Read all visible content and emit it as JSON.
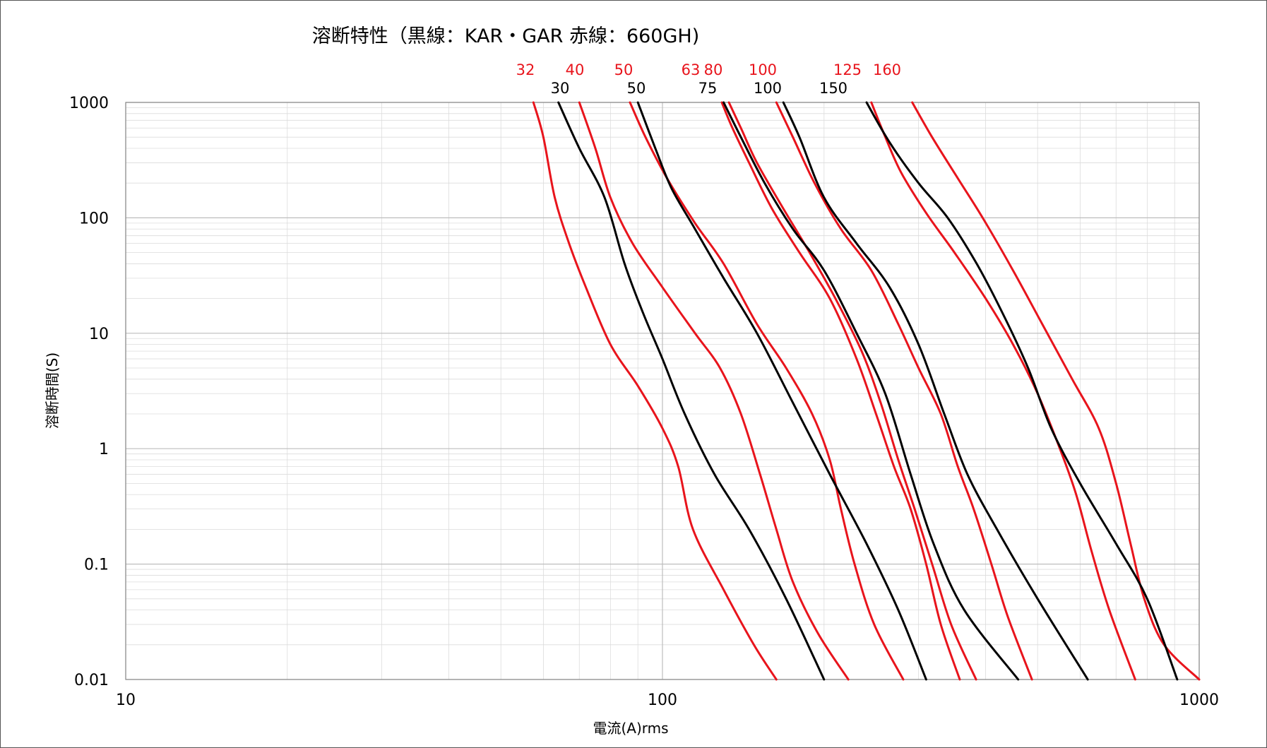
{
  "chart_data": {
    "type": "line",
    "title": "溶断特性（黒線：KAR・GAR 赤線：660GH)",
    "xlabel": "電流(A)rms",
    "ylabel": "溶断時間(S)",
    "x_scale": "log",
    "y_scale": "log",
    "xlim": [
      10,
      1000
    ],
    "ylim": [
      0.01,
      1000
    ],
    "x_ticks": [
      "10",
      "100",
      "1000"
    ],
    "y_ticks": [
      "1000",
      "100",
      "10",
      "1",
      "0.1",
      "0.01"
    ],
    "grid": true,
    "legend": "none",
    "colors": {
      "black_series": "#000000",
      "red_series": "#e8141c"
    },
    "rating_labels_red": [
      "32",
      "40",
      "50",
      "63",
      "80",
      "100",
      "125",
      "160"
    ],
    "rating_labels_black": [
      "30",
      "50",
      "75",
      "100",
      "150"
    ],
    "series": [
      {
        "name": "32",
        "color": "red",
        "points": [
          [
            57.5,
            1000
          ],
          [
            60,
            500
          ],
          [
            63,
            150
          ],
          [
            67,
            60
          ],
          [
            72,
            25
          ],
          [
            80,
            8
          ],
          [
            90,
            3.5
          ],
          [
            100,
            1.5
          ],
          [
            107,
            0.7
          ],
          [
            114,
            0.2
          ],
          [
            130,
            0.06
          ],
          [
            148,
            0.02
          ],
          [
            163,
            0.01
          ]
        ]
      },
      {
        "name": "40",
        "color": "red",
        "points": [
          [
            70,
            1000
          ],
          [
            75,
            400
          ],
          [
            80,
            150
          ],
          [
            88,
            60
          ],
          [
            100,
            25
          ],
          [
            115,
            10
          ],
          [
            128,
            5
          ],
          [
            140,
            2
          ],
          [
            152,
            0.6
          ],
          [
            163,
            0.2
          ],
          [
            175,
            0.07
          ],
          [
            195,
            0.025
          ],
          [
            222,
            0.01
          ]
        ]
      },
      {
        "name": "50",
        "color": "red",
        "points": [
          [
            87,
            1000
          ],
          [
            93,
            500
          ],
          [
            102,
            220
          ],
          [
            115,
            90
          ],
          [
            130,
            40
          ],
          [
            150,
            12
          ],
          [
            170,
            5
          ],
          [
            190,
            2
          ],
          [
            205,
            0.8
          ],
          [
            215,
            0.3
          ],
          [
            228,
            0.1
          ],
          [
            248,
            0.03
          ],
          [
            281,
            0.01
          ]
        ]
      },
      {
        "name": "63",
        "color": "red",
        "points": [
          [
            129,
            1000
          ],
          [
            135,
            600
          ],
          [
            145,
            300
          ],
          [
            160,
            120
          ],
          [
            180,
            50
          ],
          [
            205,
            20
          ],
          [
            230,
            6
          ],
          [
            250,
            2
          ],
          [
            270,
            0.7
          ],
          [
            290,
            0.3
          ],
          [
            310,
            0.1
          ],
          [
            330,
            0.03
          ],
          [
            358,
            0.01
          ]
        ]
      },
      {
        "name": "80",
        "color": "red",
        "points": [
          [
            133,
            1000
          ],
          [
            140,
            600
          ],
          [
            150,
            300
          ],
          [
            168,
            120
          ],
          [
            188,
            50
          ],
          [
            210,
            20
          ],
          [
            235,
            7
          ],
          [
            255,
            2.5
          ],
          [
            275,
            0.8
          ],
          [
            295,
            0.3
          ],
          [
            318,
            0.1
          ],
          [
            345,
            0.03
          ],
          [
            384,
            0.01
          ]
        ]
      },
      {
        "name": "100",
        "color": "red",
        "points": [
          [
            163,
            1000
          ],
          [
            175,
            500
          ],
          [
            192,
            200
          ],
          [
            215,
            80
          ],
          [
            245,
            35
          ],
          [
            275,
            12
          ],
          [
            300,
            5
          ],
          [
            330,
            2
          ],
          [
            355,
            0.7
          ],
          [
            380,
            0.3
          ],
          [
            410,
            0.1
          ],
          [
            440,
            0.035
          ],
          [
            488,
            0.01
          ]
        ]
      },
      {
        "name": "125",
        "color": "red",
        "points": [
          [
            245,
            1000
          ],
          [
            258,
            550
          ],
          [
            278,
            250
          ],
          [
            310,
            110
          ],
          [
            350,
            50
          ],
          [
            400,
            20
          ],
          [
            450,
            8
          ],
          [
            500,
            3
          ],
          [
            550,
            1
          ],
          [
            590,
            0.4
          ],
          [
            630,
            0.13
          ],
          [
            680,
            0.04
          ],
          [
            760,
            0.01
          ]
        ]
      },
      {
        "name": "160",
        "color": "red",
        "points": [
          [
            292,
            1000
          ],
          [
            318,
            500
          ],
          [
            355,
            220
          ],
          [
            395,
            100
          ],
          [
            450,
            35
          ],
          [
            510,
            12
          ],
          [
            580,
            4
          ],
          [
            650,
            1.5
          ],
          [
            700,
            0.5
          ],
          [
            745,
            0.15
          ],
          [
            790,
            0.05
          ],
          [
            860,
            0.02
          ],
          [
            1000,
            0.01
          ]
        ]
      },
      {
        "name": "30",
        "color": "black",
        "points": [
          [
            64,
            1000
          ],
          [
            70,
            400
          ],
          [
            78,
            150
          ],
          [
            85,
            40
          ],
          [
            92,
            15
          ],
          [
            100,
            6
          ],
          [
            110,
            2
          ],
          [
            125,
            0.6
          ],
          [
            145,
            0.2
          ],
          [
            170,
            0.05
          ],
          [
            200,
            0.01
          ]
        ]
      },
      {
        "name": "50",
        "color": "black",
        "points": [
          [
            90,
            1000
          ],
          [
            97,
            400
          ],
          [
            104,
            180
          ],
          [
            115,
            80
          ],
          [
            130,
            30
          ],
          [
            150,
            10
          ],
          [
            175,
            2.5
          ],
          [
            205,
            0.6
          ],
          [
            240,
            0.15
          ],
          [
            275,
            0.04
          ],
          [
            310,
            0.01
          ]
        ]
      },
      {
        "name": "75",
        "color": "black",
        "points": [
          [
            130,
            1000
          ],
          [
            140,
            500
          ],
          [
            155,
            200
          ],
          [
            175,
            80
          ],
          [
            200,
            35
          ],
          [
            230,
            10
          ],
          [
            260,
            3
          ],
          [
            290,
            0.6
          ],
          [
            320,
            0.15
          ],
          [
            365,
            0.04
          ],
          [
            460,
            0.01
          ]
        ]
      },
      {
        "name": "100",
        "color": "black",
        "points": [
          [
            168,
            1000
          ],
          [
            180,
            500
          ],
          [
            200,
            150
          ],
          [
            230,
            60
          ],
          [
            265,
            25
          ],
          [
            300,
            8
          ],
          [
            335,
            2
          ],
          [
            370,
            0.6
          ],
          [
            420,
            0.2
          ],
          [
            500,
            0.05
          ],
          [
            620,
            0.01
          ]
        ]
      },
      {
        "name": "150",
        "color": "black",
        "points": [
          [
            240,
            1000
          ],
          [
            265,
            450
          ],
          [
            300,
            200
          ],
          [
            340,
            100
          ],
          [
            385,
            40
          ],
          [
            430,
            15
          ],
          [
            480,
            5
          ],
          [
            530,
            1.5
          ],
          [
            600,
            0.5
          ],
          [
            700,
            0.15
          ],
          [
            800,
            0.05
          ],
          [
            910,
            0.01
          ]
        ]
      }
    ]
  }
}
